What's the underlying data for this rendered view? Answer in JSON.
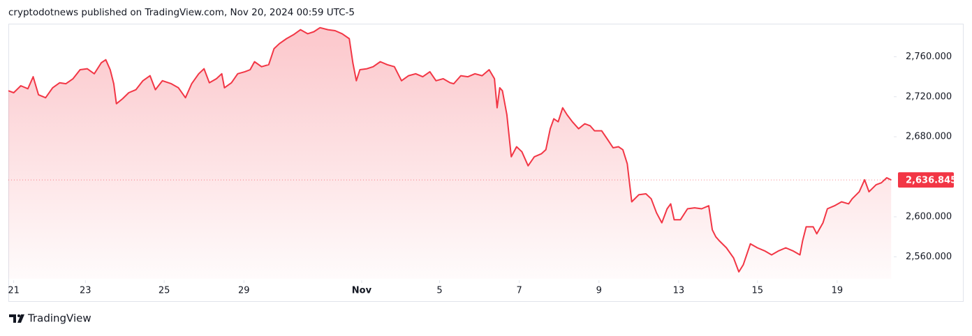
{
  "header": "cryptodotnews published on TradingView.com, Nov 20, 2024 00:59 UTC-5",
  "chart_data": {
    "type": "area",
    "color": "#f23645",
    "x": [
      0,
      6,
      14,
      22,
      28,
      34,
      42,
      50,
      58,
      65,
      73,
      81,
      89,
      97,
      105,
      110,
      115,
      119,
      122,
      129,
      136,
      144,
      152,
      160,
      166,
      174,
      184,
      192,
      200,
      207,
      215,
      221,
      227,
      235,
      241,
      244,
      252,
      259,
      267,
      273,
      278,
      286,
      294,
      300,
      306,
      314,
      322,
      330,
      338,
      345,
      352,
      361,
      369,
      377,
      385,
      389,
      393,
      397,
      405,
      412,
      420,
      428,
      436,
      444,
      452,
      460,
      468,
      476,
      483,
      491,
      499,
      503,
      511,
      519,
      527,
      535,
      543,
      549,
      552,
      555,
      558,
      563,
      568,
      574,
      580,
      587,
      594,
      602,
      607,
      612,
      616,
      621,
      626,
      631,
      637,
      644,
      651,
      657,
      662,
      670,
      677,
      683,
      689,
      694,
      699,
      704,
      712,
      720,
      726,
      732,
      738,
      744,
      748,
      752,
      759,
      767,
      775,
      783,
      791,
      795,
      799,
      803,
      811,
      819,
      825,
      830,
      838,
      846,
      854,
      862,
      870,
      878,
      886,
      894,
      897,
      901,
      909,
      913,
      920,
      925,
      933,
      941,
      949,
      953,
      961,
      967,
      972,
      980,
      986,
      992,
      997
    ],
    "values": [
      2726,
      2724,
      2731,
      2728,
      2740,
      2722,
      2719,
      2729,
      2734,
      2733,
      2738,
      2747,
      2748,
      2743,
      2754,
      2757,
      2747,
      2733,
      2713,
      2718,
      2724,
      2727,
      2736,
      2741,
      2727,
      2736,
      2733,
      2729,
      2719,
      2733,
      2743,
      2748,
      2734,
      2738,
      2743,
      2729,
      2734,
      2743,
      2745,
      2747,
      2755,
      2750,
      2752,
      2768,
      2773,
      2778,
      2782,
      2787,
      2783,
      2785,
      2789,
      2787,
      2786,
      2783,
      2778,
      2754,
      2736,
      2747,
      2748,
      2750,
      2755,
      2752,
      2750,
      2736,
      2741,
      2743,
      2740,
      2745,
      2736,
      2738,
      2734,
      2733,
      2741,
      2740,
      2743,
      2741,
      2747,
      2738,
      2709,
      2729,
      2726,
      2702,
      2660,
      2670,
      2665,
      2651,
      2660,
      2663,
      2667,
      2688,
      2698,
      2695,
      2709,
      2702,
      2695,
      2688,
      2693,
      2691,
      2686,
      2686,
      2677,
      2669,
      2670,
      2667,
      2653,
      2615,
      2622,
      2623,
      2618,
      2604,
      2594,
      2608,
      2613,
      2597,
      2597,
      2608,
      2609,
      2608,
      2611,
      2587,
      2580,
      2576,
      2569,
      2559,
      2545,
      2552,
      2573,
      2569,
      2566,
      2562,
      2566,
      2569,
      2566,
      2562,
      2576,
      2590,
      2590,
      2583,
      2594,
      2608,
      2611,
      2615,
      2613,
      2618,
      2625,
      2637,
      2625,
      2632,
      2634,
      2639,
      2636.845
    ],
    "xlim": [
      0,
      1000
    ],
    "ylim": [
      2538,
      2793
    ],
    "xticks": [
      {
        "value": 6,
        "label": "21"
      },
      {
        "value": 87,
        "label": "23"
      },
      {
        "value": 176,
        "label": "25"
      },
      {
        "value": 266,
        "label": "29"
      },
      {
        "value": 399,
        "label": "Nov"
      },
      {
        "value": 487,
        "label": "5"
      },
      {
        "value": 577,
        "label": "7"
      },
      {
        "value": 667,
        "label": "9"
      },
      {
        "value": 757,
        "label": "13"
      },
      {
        "value": 846,
        "label": "15"
      },
      {
        "value": 936,
        "label": "19"
      }
    ],
    "yticks": [
      {
        "value": 2560,
        "label": "2,560.000"
      },
      {
        "value": 2600,
        "label": "2,600.000"
      },
      {
        "value": 2680,
        "label": "2,680.000"
      },
      {
        "value": 2720,
        "label": "2,720.000"
      },
      {
        "value": 2760,
        "label": "2,760.000"
      }
    ],
    "last_price": {
      "value": 2636.845,
      "label": "2,636.845"
    }
  },
  "footer": {
    "brand": "TradingView"
  }
}
